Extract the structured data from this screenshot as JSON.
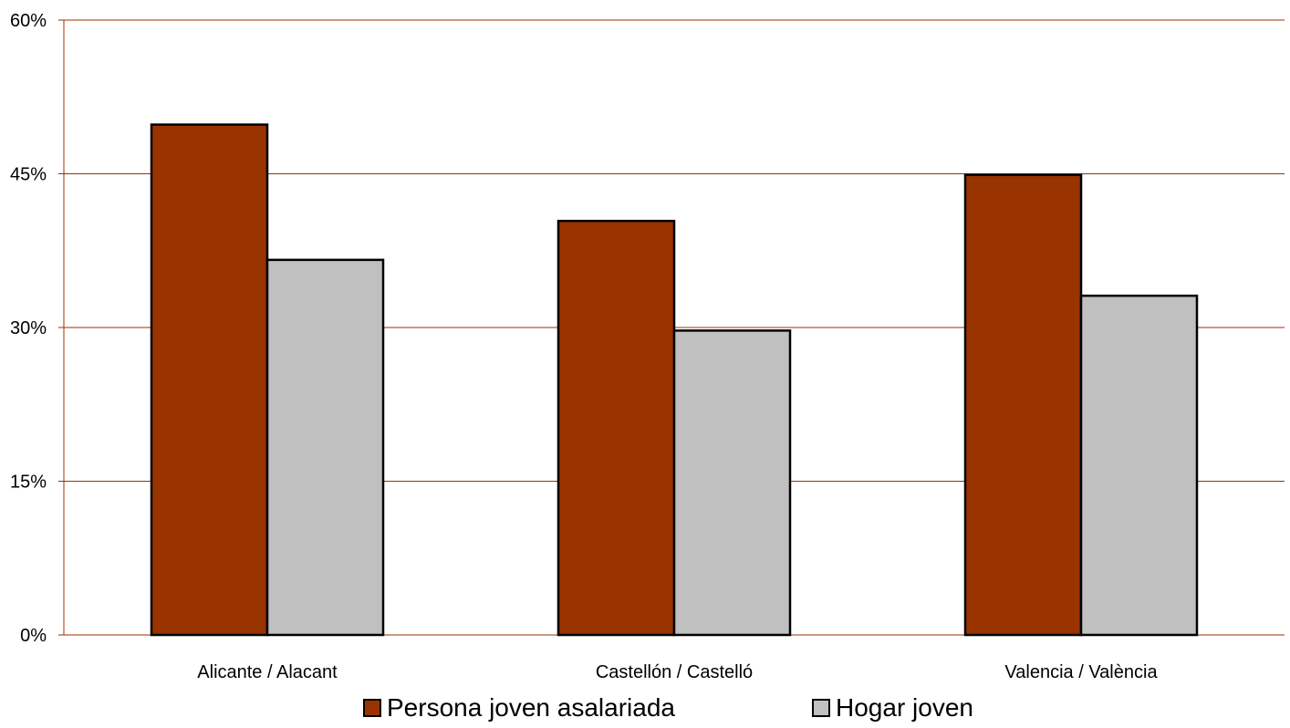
{
  "chart_data": {
    "type": "bar",
    "categories": [
      "Alicante / Alacant",
      "Castellón / Castelló",
      "Valencia / València"
    ],
    "series": [
      {
        "name": "Persona joven asalariada",
        "values": [
          49.8,
          40.4,
          44.9
        ],
        "color": "#993300"
      },
      {
        "name": "Hogar joven",
        "values": [
          36.6,
          29.7,
          33.1
        ],
        "color": "#c0c0c0"
      }
    ],
    "ylim": [
      0,
      60
    ],
    "yticks": [
      0,
      15,
      30,
      45,
      60
    ],
    "ytick_labels": [
      "0%",
      "15%",
      "30%",
      "45%",
      "60%"
    ],
    "grid": true,
    "gridline_color": "#993300",
    "legend_position": "bottom",
    "title": "",
    "xlabel": "",
    "ylabel": ""
  }
}
